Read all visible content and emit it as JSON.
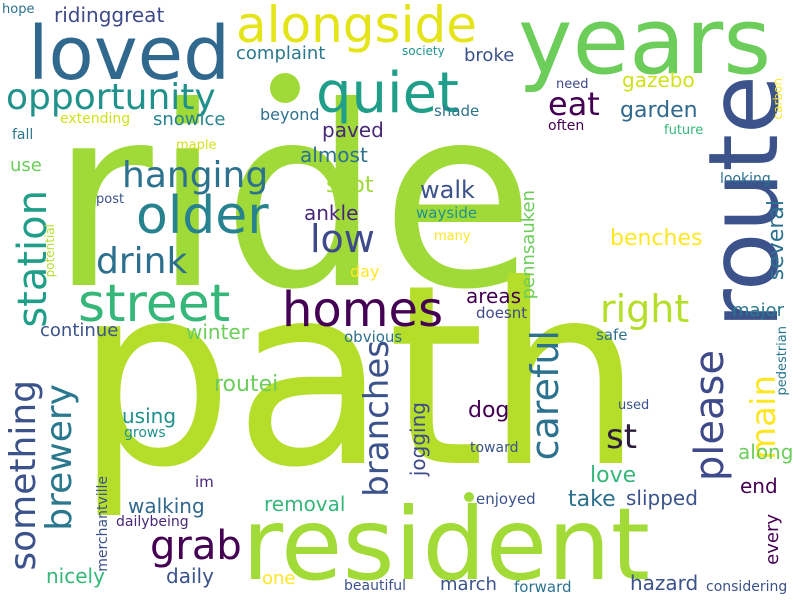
{
  "words": {
    "ride": {
      "text": "ride",
      "color": "#a0da39"
    },
    "path": {
      "text": "path",
      "color": "#b5de2b"
    },
    "resident": {
      "text": "resident",
      "color": "#a2da37"
    },
    "years": {
      "text": "years",
      "color": "#6ccd5a"
    },
    "route": {
      "text": "route",
      "color": "#3b528b"
    },
    "loved": {
      "text": "loved",
      "color": "#31688e"
    },
    "alongside": {
      "text": "alongside",
      "color": "#e5e419"
    },
    "quiet": {
      "text": "quiet",
      "color": "#1f9e89"
    },
    "opportunity": {
      "text": "opportunity",
      "color": "#21918c"
    },
    "older": {
      "text": "older",
      "color": "#26828e"
    },
    "street": {
      "text": "street",
      "color": "#35b779"
    },
    "homes": {
      "text": "homes",
      "color": "#440154"
    },
    "hanging": {
      "text": "hanging",
      "color": "#2c728e"
    },
    "drink": {
      "text": "drink",
      "color": "#2d708e"
    },
    "low": {
      "text": "low",
      "color": "#3e4a89"
    },
    "station": {
      "text": "station",
      "color": "#1f9e89"
    },
    "something": {
      "text": "something",
      "color": "#3b528b"
    },
    "brewery": {
      "text": "brewery",
      "color": "#2a788e"
    },
    "branches": {
      "text": "branches",
      "color": "#3b528b"
    },
    "careful": {
      "text": "careful",
      "color": "#2c728e"
    },
    "please": {
      "text": "please",
      "color": "#3e4a89"
    },
    "main": {
      "text": "main",
      "color": "#fde725"
    },
    "right": {
      "text": "right",
      "color": "#b5de2b"
    },
    "st": {
      "text": "st",
      "color": "#2d1e3e"
    },
    "grab": {
      "text": "grab",
      "color": "#440154"
    },
    "eat": {
      "text": "eat",
      "color": "#440154"
    },
    "garden": {
      "text": "garden",
      "color": "#31688e"
    },
    "gazebo": {
      "text": "gazebo",
      "color": "#d0e11c"
    },
    "ridinggreat": {
      "text": "ridinggreat",
      "color": "#3e4a89"
    },
    "complaint": {
      "text": "complaint",
      "color": "#2a788e"
    },
    "broke": {
      "text": "broke",
      "color": "#3b528b"
    },
    "extending": {
      "text": "extending",
      "color": "#d0e11c"
    },
    "snowice": {
      "text": "snowice",
      "color": "#26828e"
    },
    "beyond": {
      "text": "beyond",
      "color": "#2d708e"
    },
    "paved": {
      "text": "paved",
      "color": "#482878"
    },
    "almost": {
      "text": "almost",
      "color": "#2c728e"
    },
    "shade": {
      "text": "shade",
      "color": "#2c728e"
    },
    "often": {
      "text": "often",
      "color": "#440154"
    },
    "future": {
      "text": "future",
      "color": "#35b779"
    },
    "carbon": {
      "text": "carbon",
      "color": "#fde725"
    },
    "need": {
      "text": "need",
      "color": "#3e4a89"
    },
    "spot": {
      "text": "spot",
      "color": "#a0da39"
    },
    "walk": {
      "text": "walk",
      "color": "#3b528b"
    },
    "ankle": {
      "text": "ankle",
      "color": "#482878"
    },
    "wayside": {
      "text": "wayside",
      "color": "#21918c"
    },
    "pennsauken": {
      "text": "pennsauken",
      "color": "#6ccd5a"
    },
    "benches": {
      "text": "benches",
      "color": "#fde725"
    },
    "several": {
      "text": "several",
      "color": "#2c728e"
    },
    "looking": {
      "text": "looking",
      "color": "#2c728e"
    },
    "many": {
      "text": "many",
      "color": "#fde725"
    },
    "day": {
      "text": "day",
      "color": "#fde725"
    },
    "areas": {
      "text": "areas",
      "color": "#440154"
    },
    "doesnt": {
      "text": "doesnt",
      "color": "#3e4a89"
    },
    "major": {
      "text": "major",
      "color": "#2a788e"
    },
    "continue": {
      "text": "continue",
      "color": "#3b528b"
    },
    "winter": {
      "text": "winter",
      "color": "#6ccd5a"
    },
    "obvious": {
      "text": "obvious",
      "color": "#2d708e"
    },
    "safe": {
      "text": "safe",
      "color": "#2d708e"
    },
    "pedestrian": {
      "text": "pedestrian",
      "color": "#2a788e"
    },
    "routei": {
      "text": "routei",
      "color": "#6ccd5a"
    },
    "along": {
      "text": "along",
      "color": "#6ccd5a"
    },
    "dog": {
      "text": "dog",
      "color": "#440154"
    },
    "jogging": {
      "text": "jogging",
      "color": "#3e4a89"
    },
    "using": {
      "text": "using",
      "color": "#21918c"
    },
    "grows": {
      "text": "grows",
      "color": "#21918c"
    },
    "used": {
      "text": "used",
      "color": "#3b528b"
    },
    "toward": {
      "text": "toward",
      "color": "#3b528b"
    },
    "love": {
      "text": "love",
      "color": "#35b779"
    },
    "end": {
      "text": "end",
      "color": "#440154"
    },
    "take": {
      "text": "take",
      "color": "#2d708e"
    },
    "slipped": {
      "text": "slipped",
      "color": "#3b528b"
    },
    "every": {
      "text": "every",
      "color": "#440154"
    },
    "walking": {
      "text": "walking",
      "color": "#31688e"
    },
    "removal": {
      "text": "removal",
      "color": "#35b779"
    },
    "im": {
      "text": "im",
      "color": "#482878"
    },
    "enjoyed": {
      "text": "enjoyed",
      "color": "#3b528b"
    },
    "merchantville": {
      "text": "merchantville",
      "color": "#3b528b"
    },
    "dailybeing": {
      "text": "dailybeing",
      "color": "#482878"
    },
    "nicely": {
      "text": "nicely",
      "color": "#35b779"
    },
    "daily": {
      "text": "daily",
      "color": "#3b528b"
    },
    "one": {
      "text": "one",
      "color": "#fde725"
    },
    "march": {
      "text": "march",
      "color": "#3b528b"
    },
    "hazard": {
      "text": "hazard",
      "color": "#3b528b"
    },
    "beautiful": {
      "text": "beautiful",
      "color": "#3b528b"
    },
    "forward": {
      "text": "forward",
      "color": "#2c728e"
    },
    "considering": {
      "text": "considering",
      "color": "#3b528b"
    },
    "hope": {
      "text": "hope",
      "color": "#2c728e"
    },
    "society": {
      "text": "society",
      "color": "#21918c"
    },
    "fall": {
      "text": "fall",
      "color": "#2a788e"
    },
    "use": {
      "text": "use",
      "color": "#6ccd5a"
    },
    "maple": {
      "text": "maple",
      "color": "#d0e11c"
    },
    "post": {
      "text": "post",
      "color": "#3b528b"
    },
    "potential": {
      "text": "potential",
      "color": "#b5de2b"
    }
  },
  "colors": {
    "background": "#ffffff",
    "dot_large": "#a0da39",
    "dot_small": "#a0da39"
  }
}
